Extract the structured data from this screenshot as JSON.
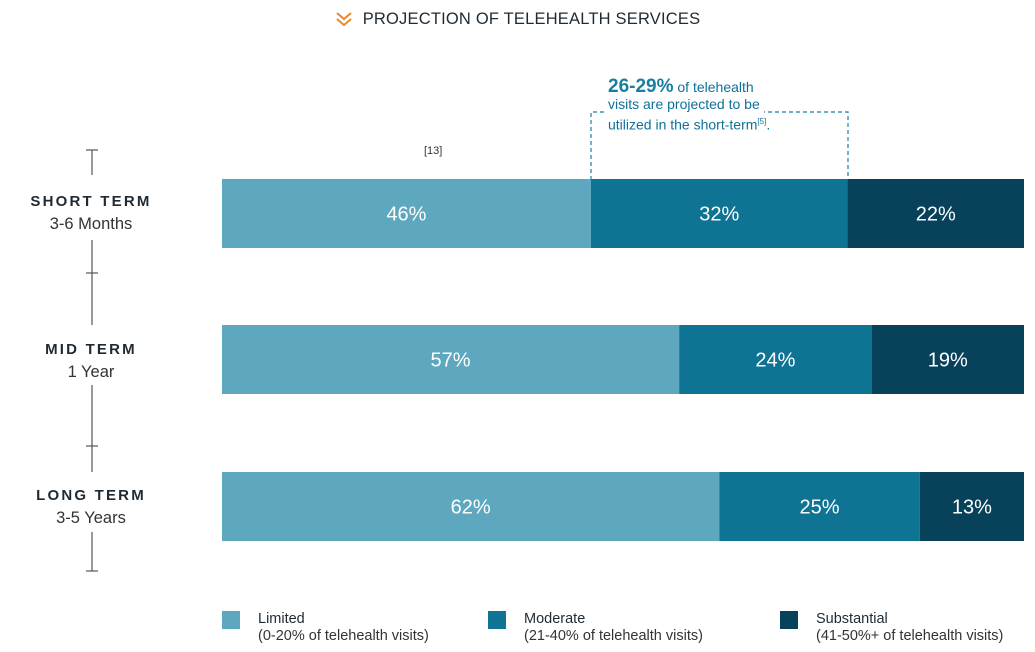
{
  "title": "PROJECTION OF TELEHEALTH SERVICES",
  "icons": {
    "title_icon": "double-chevron-down-icon"
  },
  "colors": {
    "limited": "#5da8bf",
    "moderate": "#0f7394",
    "substantial": "#07425a",
    "accent": "#e8892d",
    "callout": "#1a7ea3",
    "bar_text": "#ffffff"
  },
  "callout": {
    "highlight": "26-29%",
    "text_line1": " of telehealth",
    "text_line2": "visits are projected to be",
    "text_line3": "utilized in the short-term",
    "ref": "[5]",
    "period": "."
  },
  "ref13": "[13]",
  "rows": [
    {
      "term": "SHORT TERM",
      "period": "3-6 Months"
    },
    {
      "term": "MID TERM",
      "period": "1 Year"
    },
    {
      "term": "LONG TERM",
      "period": "3-5 Years"
    }
  ],
  "legend": [
    {
      "name": "Limited",
      "sub": "(0-20% of telehealth visits)"
    },
    {
      "name": "Moderate",
      "sub": "(21-40% of telehealth visits)"
    },
    {
      "name": "Substantial",
      "sub": "(41-50%+ of telehealth visits)"
    }
  ],
  "chart_data": {
    "type": "bar",
    "orientation": "horizontal",
    "stacked": true,
    "percent_stacked": true,
    "categories": [
      "SHORT TERM 3-6 Months",
      "MID TERM 1 Year",
      "LONG TERM 3-5 Years"
    ],
    "series": [
      {
        "name": "Limited",
        "values": [
          46,
          57,
          62
        ],
        "labels": [
          "46%",
          "57%",
          "62%"
        ]
      },
      {
        "name": "Moderate",
        "values": [
          32,
          24,
          25
        ],
        "labels": [
          "32%",
          "24%",
          "25%"
        ]
      },
      {
        "name": "Substantial",
        "values": [
          22,
          19,
          13
        ],
        "labels": [
          "22%",
          "19%",
          "13%"
        ]
      }
    ],
    "xlim": [
      0,
      100
    ],
    "legend": "bottom",
    "grid": false
  }
}
